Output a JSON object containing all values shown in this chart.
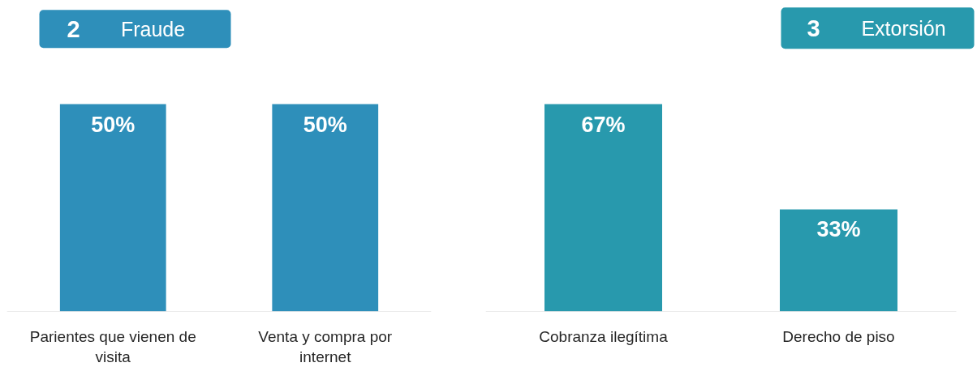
{
  "chart_data": [
    {
      "type": "bar",
      "title": "Fraude",
      "annotations": [
        "2"
      ],
      "categories": [
        "Parientes que vienen de visita",
        "Venta y compra por internet"
      ],
      "values": [
        50,
        50
      ],
      "value_labels": [
        "50%",
        "50%"
      ],
      "color": "#2e8fba"
    },
    {
      "type": "bar",
      "title": "Extorsión",
      "annotations": [
        "3"
      ],
      "categories": [
        "Cobranza ilegítima",
        "Derecho de piso"
      ],
      "values": [
        67,
        33
      ],
      "value_labels": [
        "67%",
        "33%"
      ],
      "color": "#2899ad"
    }
  ]
}
